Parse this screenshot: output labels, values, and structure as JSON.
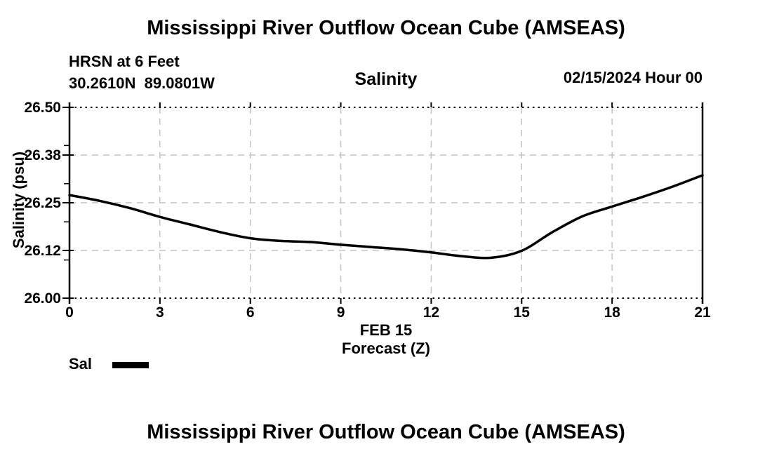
{
  "page": {
    "top_title": "Mississippi River Outflow Ocean Cube (AMSEAS)",
    "bottom_title": "Mississippi River Outflow Ocean Cube (AMSEAS)"
  },
  "header": {
    "station": "HRSN at 6 Feet",
    "coordinates": "30.2610N  89.0801W",
    "panel_title": "Salinity",
    "datetime": "02/15/2024 Hour 00"
  },
  "colors": {
    "text": "#000000",
    "axis": "#000000",
    "grid": "#c3c3c3",
    "curve": "#000000",
    "background": "#ffffff"
  },
  "chart_data": {
    "type": "line",
    "title": "Salinity",
    "ylabel": "Salinity (psu)",
    "xlabel_lines": [
      "FEB 15",
      "Forecast (Z)"
    ],
    "xlim": [
      0,
      21
    ],
    "ylim": [
      26.0,
      26.5
    ],
    "grid": true,
    "legend_position": "bottom-left",
    "x_ticks": [
      {
        "value": 0,
        "label": "0"
      },
      {
        "value": 3,
        "label": "3"
      },
      {
        "value": 6,
        "label": "6"
      },
      {
        "value": 9,
        "label": "9"
      },
      {
        "value": 12,
        "label": "12"
      },
      {
        "value": 15,
        "label": "15"
      },
      {
        "value": 18,
        "label": "18"
      },
      {
        "value": 21,
        "label": "21"
      }
    ],
    "y_ticks": [
      {
        "value": 26.0,
        "label": "26.00"
      },
      {
        "value": 26.125,
        "label": "26.12"
      },
      {
        "value": 26.25,
        "label": "26.25"
      },
      {
        "value": 26.375,
        "label": "26.38"
      },
      {
        "value": 26.5,
        "label": "26.50"
      }
    ],
    "y_minor_ticks": [
      26.1,
      26.2,
      26.3,
      26.4
    ],
    "series": [
      {
        "name": "Sal",
        "color": "#000000",
        "x": [
          0,
          1,
          2,
          3,
          4,
          5,
          6,
          7,
          8,
          9,
          10,
          11,
          12,
          13,
          14,
          15,
          16,
          17,
          18,
          19,
          20,
          21
        ],
        "values": [
          26.27,
          26.255,
          26.236,
          26.213,
          26.193,
          26.173,
          26.157,
          26.15,
          26.147,
          26.14,
          26.134,
          26.128,
          26.12,
          26.11,
          26.106,
          26.124,
          26.172,
          26.214,
          26.24,
          26.265,
          26.292,
          26.322
        ]
      }
    ]
  }
}
